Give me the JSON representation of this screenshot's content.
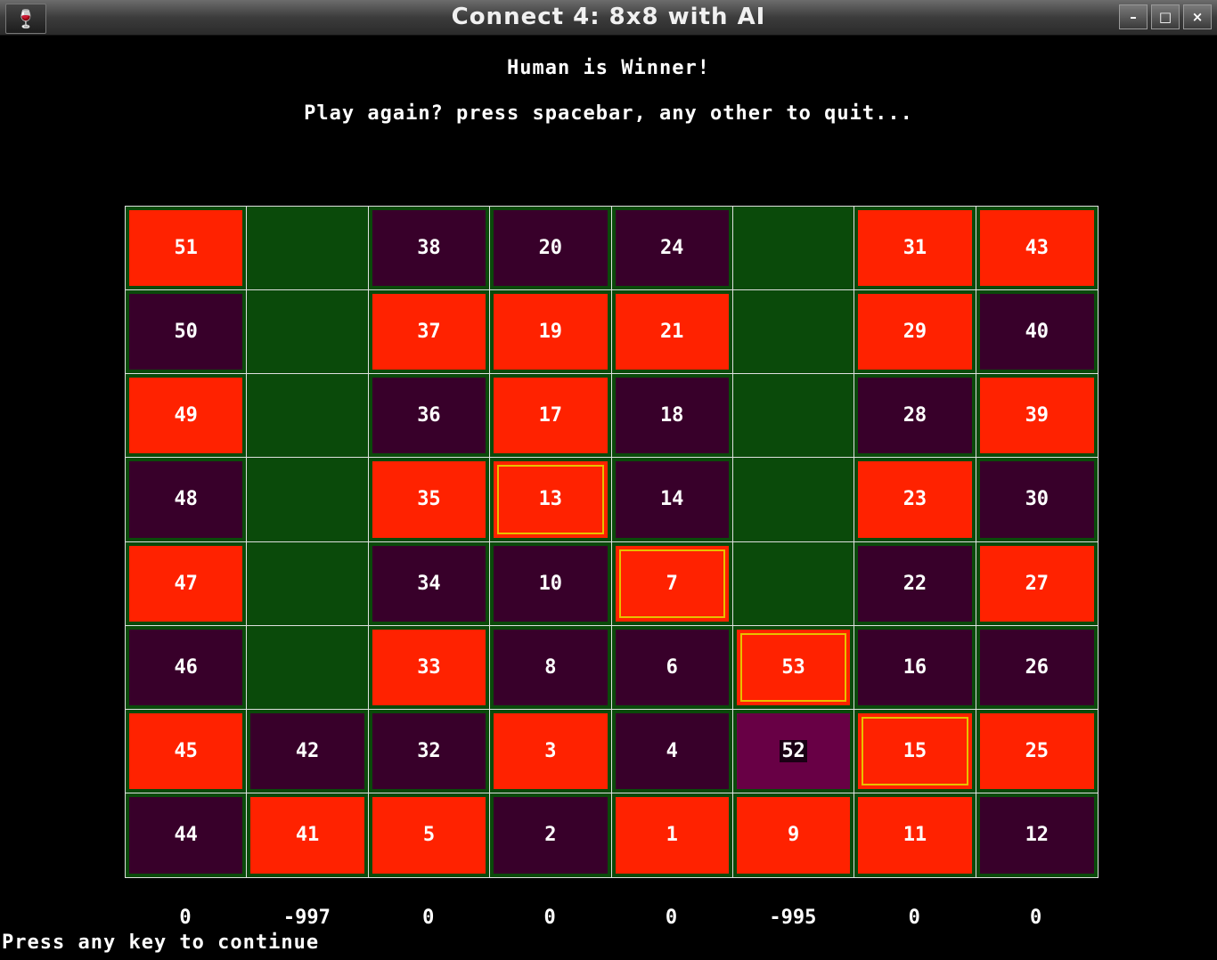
{
  "window": {
    "title": "Connect 4: 8x8 with AI",
    "app_icon": "wine-glass-icon",
    "buttons": [
      "minimize-icon",
      "maximize-icon",
      "close-icon"
    ]
  },
  "status": {
    "winner": "Human is Winner!",
    "prompt": "Play again? press spacebar, any other to quit..."
  },
  "colors": {
    "human_piece": "#ff2200",
    "ai_piece": "#38002a",
    "last_move": "#680045",
    "empty_cell": "#0a4a0a",
    "win_outline": "#e8c000",
    "grid_line": "#e0e0e0"
  },
  "board": {
    "rows": [
      [
        {
          "n": "51",
          "p": "red"
        },
        {
          "n": "",
          "p": "empty"
        },
        {
          "n": "38",
          "p": "dark"
        },
        {
          "n": "20",
          "p": "dark"
        },
        {
          "n": "24",
          "p": "dark"
        },
        {
          "n": "",
          "p": "empty"
        },
        {
          "n": "31",
          "p": "red"
        },
        {
          "n": "43",
          "p": "red"
        }
      ],
      [
        {
          "n": "50",
          "p": "dark"
        },
        {
          "n": "",
          "p": "empty"
        },
        {
          "n": "37",
          "p": "red"
        },
        {
          "n": "19",
          "p": "red"
        },
        {
          "n": "21",
          "p": "red"
        },
        {
          "n": "",
          "p": "empty"
        },
        {
          "n": "29",
          "p": "red"
        },
        {
          "n": "40",
          "p": "dark"
        }
      ],
      [
        {
          "n": "49",
          "p": "red"
        },
        {
          "n": "",
          "p": "empty"
        },
        {
          "n": "36",
          "p": "dark"
        },
        {
          "n": "17",
          "p": "red"
        },
        {
          "n": "18",
          "p": "dark"
        },
        {
          "n": "",
          "p": "empty"
        },
        {
          "n": "28",
          "p": "dark"
        },
        {
          "n": "39",
          "p": "red"
        }
      ],
      [
        {
          "n": "48",
          "p": "dark"
        },
        {
          "n": "",
          "p": "empty"
        },
        {
          "n": "35",
          "p": "red"
        },
        {
          "n": "13",
          "p": "red",
          "win": true
        },
        {
          "n": "14",
          "p": "dark"
        },
        {
          "n": "",
          "p": "empty"
        },
        {
          "n": "23",
          "p": "red"
        },
        {
          "n": "30",
          "p": "dark"
        }
      ],
      [
        {
          "n": "47",
          "p": "red"
        },
        {
          "n": "",
          "p": "empty"
        },
        {
          "n": "34",
          "p": "dark"
        },
        {
          "n": "10",
          "p": "dark"
        },
        {
          "n": "7",
          "p": "red",
          "win": true
        },
        {
          "n": "",
          "p": "empty"
        },
        {
          "n": "22",
          "p": "dark"
        },
        {
          "n": "27",
          "p": "red"
        }
      ],
      [
        {
          "n": "46",
          "p": "dark"
        },
        {
          "n": "",
          "p": "empty"
        },
        {
          "n": "33",
          "p": "red"
        },
        {
          "n": "8",
          "p": "dark"
        },
        {
          "n": "6",
          "p": "dark"
        },
        {
          "n": "53",
          "p": "red",
          "win": true
        },
        {
          "n": "16",
          "p": "dark"
        },
        {
          "n": "26",
          "p": "dark"
        }
      ],
      [
        {
          "n": "45",
          "p": "red"
        },
        {
          "n": "42",
          "p": "dark"
        },
        {
          "n": "32",
          "p": "dark"
        },
        {
          "n": "3",
          "p": "red"
        },
        {
          "n": "4",
          "p": "dark"
        },
        {
          "n": "52",
          "p": "last"
        },
        {
          "n": "15",
          "p": "red",
          "win": true
        },
        {
          "n": "25",
          "p": "red"
        }
      ],
      [
        {
          "n": "44",
          "p": "dark"
        },
        {
          "n": "41",
          "p": "red"
        },
        {
          "n": "5",
          "p": "red"
        },
        {
          "n": "2",
          "p": "dark"
        },
        {
          "n": "1",
          "p": "red"
        },
        {
          "n": "9",
          "p": "red"
        },
        {
          "n": "11",
          "p": "red"
        },
        {
          "n": "12",
          "p": "dark"
        }
      ]
    ]
  },
  "column_scores": [
    "0",
    "-997",
    "0",
    "0",
    "0",
    "-995",
    "0",
    "0"
  ],
  "footer": "Press any key to continue"
}
